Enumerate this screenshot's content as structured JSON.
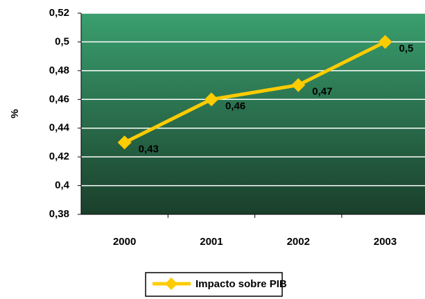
{
  "chart_data": {
    "type": "line",
    "y_label": "%",
    "categories": [
      "2000",
      "2001",
      "2002",
      "2003"
    ],
    "series": [
      {
        "name": "Impacto sobre PIB",
        "color": "#ffcc00",
        "values": [
          0.43,
          0.46,
          0.47,
          0.5
        ],
        "value_labels": [
          "0,43",
          "0,46",
          "0,47",
          "0,5"
        ]
      }
    ],
    "ylim": [
      0.38,
      0.52
    ],
    "yticks": [
      {
        "value": 0.38,
        "label": "0,38"
      },
      {
        "value": 0.4,
        "label": "0,4"
      },
      {
        "value": 0.42,
        "label": "0,42"
      },
      {
        "value": 0.44,
        "label": "0,44"
      },
      {
        "value": 0.46,
        "label": "0,46"
      },
      {
        "value": 0.48,
        "label": "0,48"
      },
      {
        "value": 0.5,
        "label": "0,5"
      },
      {
        "value": 0.52,
        "label": "0,52"
      }
    ],
    "grid": true,
    "legend": "bottom"
  }
}
